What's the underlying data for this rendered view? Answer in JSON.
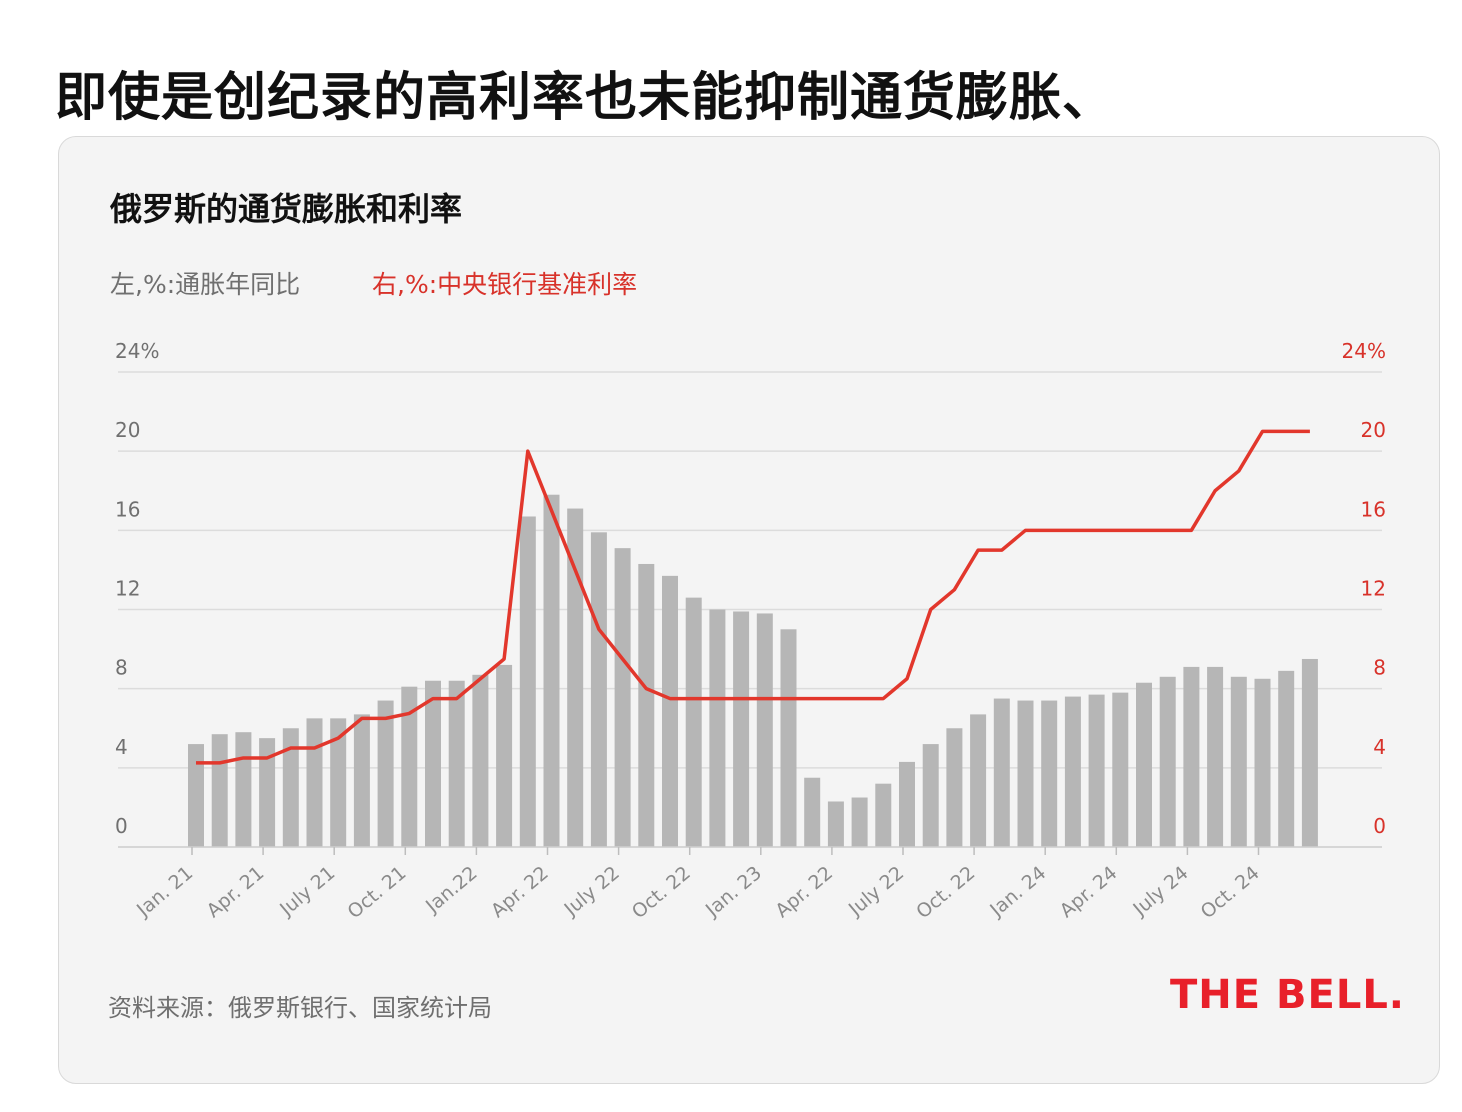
{
  "headline": "即使是创纪录的高利率也未能抑制通货膨胀、",
  "source": "资料来源：俄罗斯银行、国家统计局",
  "logo_text": "THE BELL.",
  "colors": {
    "bars": "#b6b6b6",
    "line": "#e2372c",
    "right_axis": "#d8322a",
    "grid": "#dcdcdc",
    "card_bg": "#f4f4f4"
  },
  "chart_data": {
    "type": "bar",
    "title": "俄罗斯的通货膨胀和利率",
    "left_label": "左,%:通胀年同比",
    "right_label": "右,%:中央银行基准利率",
    "ylim": [
      0,
      24
    ],
    "yticks": [
      0,
      4,
      8,
      12,
      16,
      20
    ],
    "ytick_top_label": "24%",
    "grid": true,
    "x_tick_labels": [
      "Jan. 21",
      "Apr. 21",
      "July 21",
      "Oct. 21",
      "Jan.22",
      "Apr. 22",
      "July 22",
      "Oct. 22",
      "Jan. 23",
      "Apr. 22",
      "July 22",
      "Oct. 22",
      "Jan. 24",
      "Apr. 24",
      "July 24",
      "Oct. 24"
    ],
    "series": [
      {
        "name": "通胀年同比",
        "axis": "left",
        "type": "bar",
        "values": [
          5.2,
          5.7,
          5.8,
          5.5,
          6.0,
          6.5,
          6.5,
          6.7,
          7.4,
          8.1,
          8.4,
          8.4,
          8.7,
          9.2,
          16.7,
          17.8,
          17.1,
          15.9,
          15.1,
          14.3,
          13.7,
          12.6,
          12.0,
          11.9,
          11.8,
          11.0,
          3.5,
          2.3,
          2.5,
          3.2,
          4.3,
          5.2,
          6.0,
          6.7,
          7.5,
          7.4,
          7.4,
          7.6,
          7.7,
          7.8,
          8.3,
          8.6,
          9.1,
          9.1,
          8.6,
          8.5,
          8.9,
          9.5
        ]
      },
      {
        "name": "中央银行基准利率",
        "axis": "right",
        "type": "line",
        "values": [
          4.25,
          4.25,
          4.5,
          4.5,
          5.0,
          5.0,
          5.5,
          6.5,
          6.5,
          6.75,
          7.5,
          7.5,
          8.5,
          9.5,
          20.0,
          17.0,
          14.0,
          11.0,
          9.5,
          8.0,
          7.5,
          7.5,
          7.5,
          7.5,
          7.5,
          7.5,
          7.5,
          7.5,
          7.5,
          7.5,
          8.5,
          12.0,
          13.0,
          15.0,
          15.0,
          16.0,
          16.0,
          16.0,
          16.0,
          16.0,
          16.0,
          16.0,
          16.0,
          18.0,
          19.0,
          21.0,
          21.0,
          21.0
        ]
      }
    ]
  }
}
